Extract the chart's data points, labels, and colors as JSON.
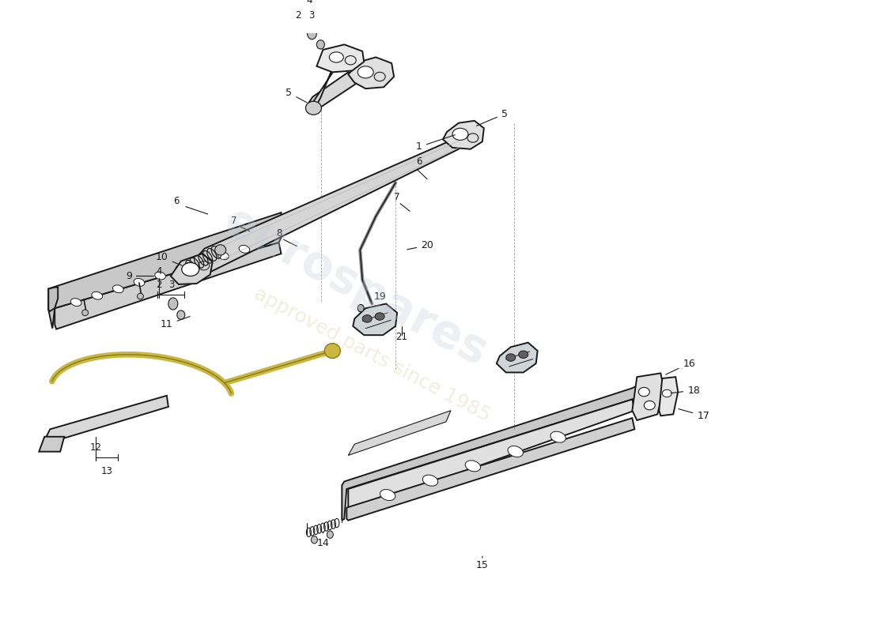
{
  "background_color": "#ffffff",
  "line_color": "#1a1a1a",
  "watermark_text": "eurospares",
  "watermark_subtext": "approved parts since 1985",
  "watermark_color": "#c8ccd8",
  "watermark_sub_color": "#d8d0a0"
}
